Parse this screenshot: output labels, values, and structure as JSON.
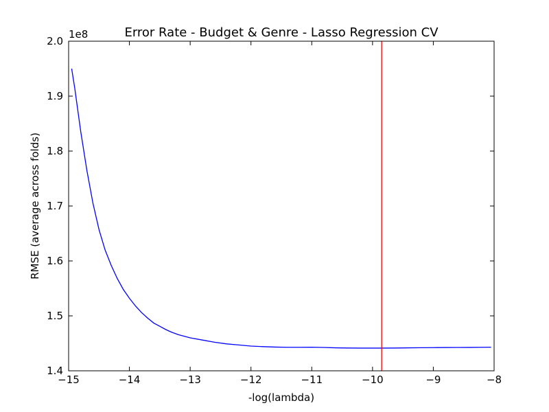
{
  "chart_data": {
    "type": "line",
    "title": "Error Rate - Budget & Genre - Lasso Regression CV",
    "xlabel": "-log(lambda)",
    "ylabel": "RMSE (average across folds)",
    "y_offset_label": "1e8",
    "xlim": [
      -15,
      -8
    ],
    "ylim": [
      1.4,
      2.0
    ],
    "x_ticks": [
      -15,
      -14,
      -13,
      -12,
      -11,
      -10,
      -9,
      -8
    ],
    "x_tick_labels": [
      "−15",
      "−14",
      "−13",
      "−12",
      "−11",
      "−10",
      "−9",
      "−8"
    ],
    "y_ticks": [
      1.4,
      1.5,
      1.6,
      1.7,
      1.8,
      1.9,
      2.0
    ],
    "y_tick_labels": [
      "1.4",
      "1.5",
      "1.6",
      "1.7",
      "1.8",
      "1.9",
      "2.0"
    ],
    "grid": false,
    "series": [
      {
        "color": "#0000ff",
        "x": [
          -14.95,
          -14.9,
          -14.85,
          -14.8,
          -14.7,
          -14.6,
          -14.5,
          -14.4,
          -14.3,
          -14.2,
          -14.1,
          -14.0,
          -13.9,
          -13.8,
          -13.7,
          -13.6,
          -13.5,
          -13.4,
          -13.3,
          -13.2,
          -13.1,
          -13.0,
          -12.8,
          -12.6,
          -12.4,
          -12.2,
          -12.0,
          -11.8,
          -11.6,
          -11.4,
          -11.2,
          -11.0,
          -10.8,
          -10.6,
          -10.4,
          -10.2,
          -10.0,
          -9.85,
          -9.6,
          -9.4,
          -9.2,
          -9.0,
          -8.8,
          -8.6,
          -8.4,
          -8.2,
          -8.05
        ],
        "y": [
          1.95,
          1.915,
          1.875,
          1.835,
          1.765,
          1.705,
          1.657,
          1.62,
          1.592,
          1.568,
          1.548,
          1.532,
          1.518,
          1.506,
          1.496,
          1.487,
          1.481,
          1.475,
          1.47,
          1.466,
          1.463,
          1.46,
          1.456,
          1.452,
          1.449,
          1.447,
          1.445,
          1.444,
          1.4432,
          1.4428,
          1.4428,
          1.443,
          1.4425,
          1.4418,
          1.4415,
          1.4413,
          1.4413,
          1.4413,
          1.4415,
          1.4418,
          1.442,
          1.4422,
          1.4424,
          1.4425,
          1.4426,
          1.4428,
          1.443
        ]
      }
    ],
    "vline": {
      "x": -9.85,
      "color": "#ff0000"
    },
    "colors": {
      "series": "#0000ff",
      "vline": "#ff0000",
      "axes": "#000000"
    }
  }
}
